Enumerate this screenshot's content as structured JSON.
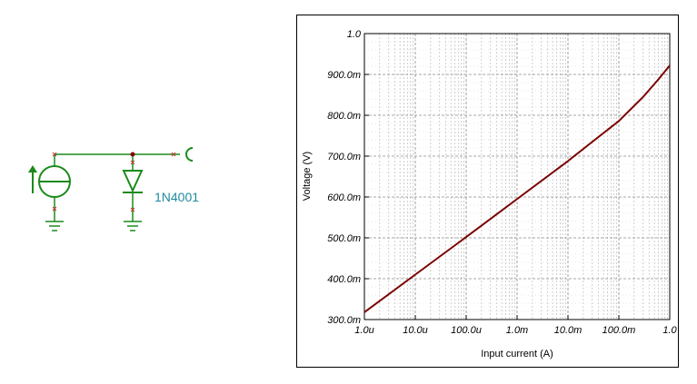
{
  "schematic": {
    "diode_part": "1N4001",
    "colors": {
      "wire": "#1a8a1a",
      "node": "#8b0000",
      "pin": "#c0392b",
      "label": "#1f8aa0"
    }
  },
  "chart_data": {
    "type": "line",
    "xscale": "log",
    "xlabel": "Input current (A)",
    "ylabel": "Voltage (V)",
    "xlim": [
      1e-06,
      1.0
    ],
    "ylim": [
      0.3,
      1.0
    ],
    "x_ticks": [
      {
        "value": 1e-06,
        "label": "1.0u"
      },
      {
        "value": 1e-05,
        "label": "10.0u"
      },
      {
        "value": 0.0001,
        "label": "100.0u"
      },
      {
        "value": 0.001,
        "label": "1.0m"
      },
      {
        "value": 0.01,
        "label": "10.0m"
      },
      {
        "value": 0.1,
        "label": "100.0m"
      },
      {
        "value": 1.0,
        "label": "1.0"
      }
    ],
    "y_ticks": [
      {
        "value": 0.3,
        "label": "300.0m"
      },
      {
        "value": 0.4,
        "label": "400.0m"
      },
      {
        "value": 0.5,
        "label": "500.0m"
      },
      {
        "value": 0.6,
        "label": "600.0m"
      },
      {
        "value": 0.7,
        "label": "700.0m"
      },
      {
        "value": 0.8,
        "label": "800.0m"
      },
      {
        "value": 0.9,
        "label": "900.0m"
      },
      {
        "value": 1.0,
        "label": "1.0"
      }
    ],
    "grid": true,
    "series": [
      {
        "color": "#7a0000",
        "x": [
          1e-06,
          1e-05,
          0.0001,
          0.001,
          0.01,
          0.03,
          0.1,
          0.3,
          0.6,
          1.0
        ],
        "y": [
          0.318,
          0.41,
          0.502,
          0.595,
          0.688,
          0.735,
          0.786,
          0.845,
          0.888,
          0.922
        ]
      }
    ]
  }
}
